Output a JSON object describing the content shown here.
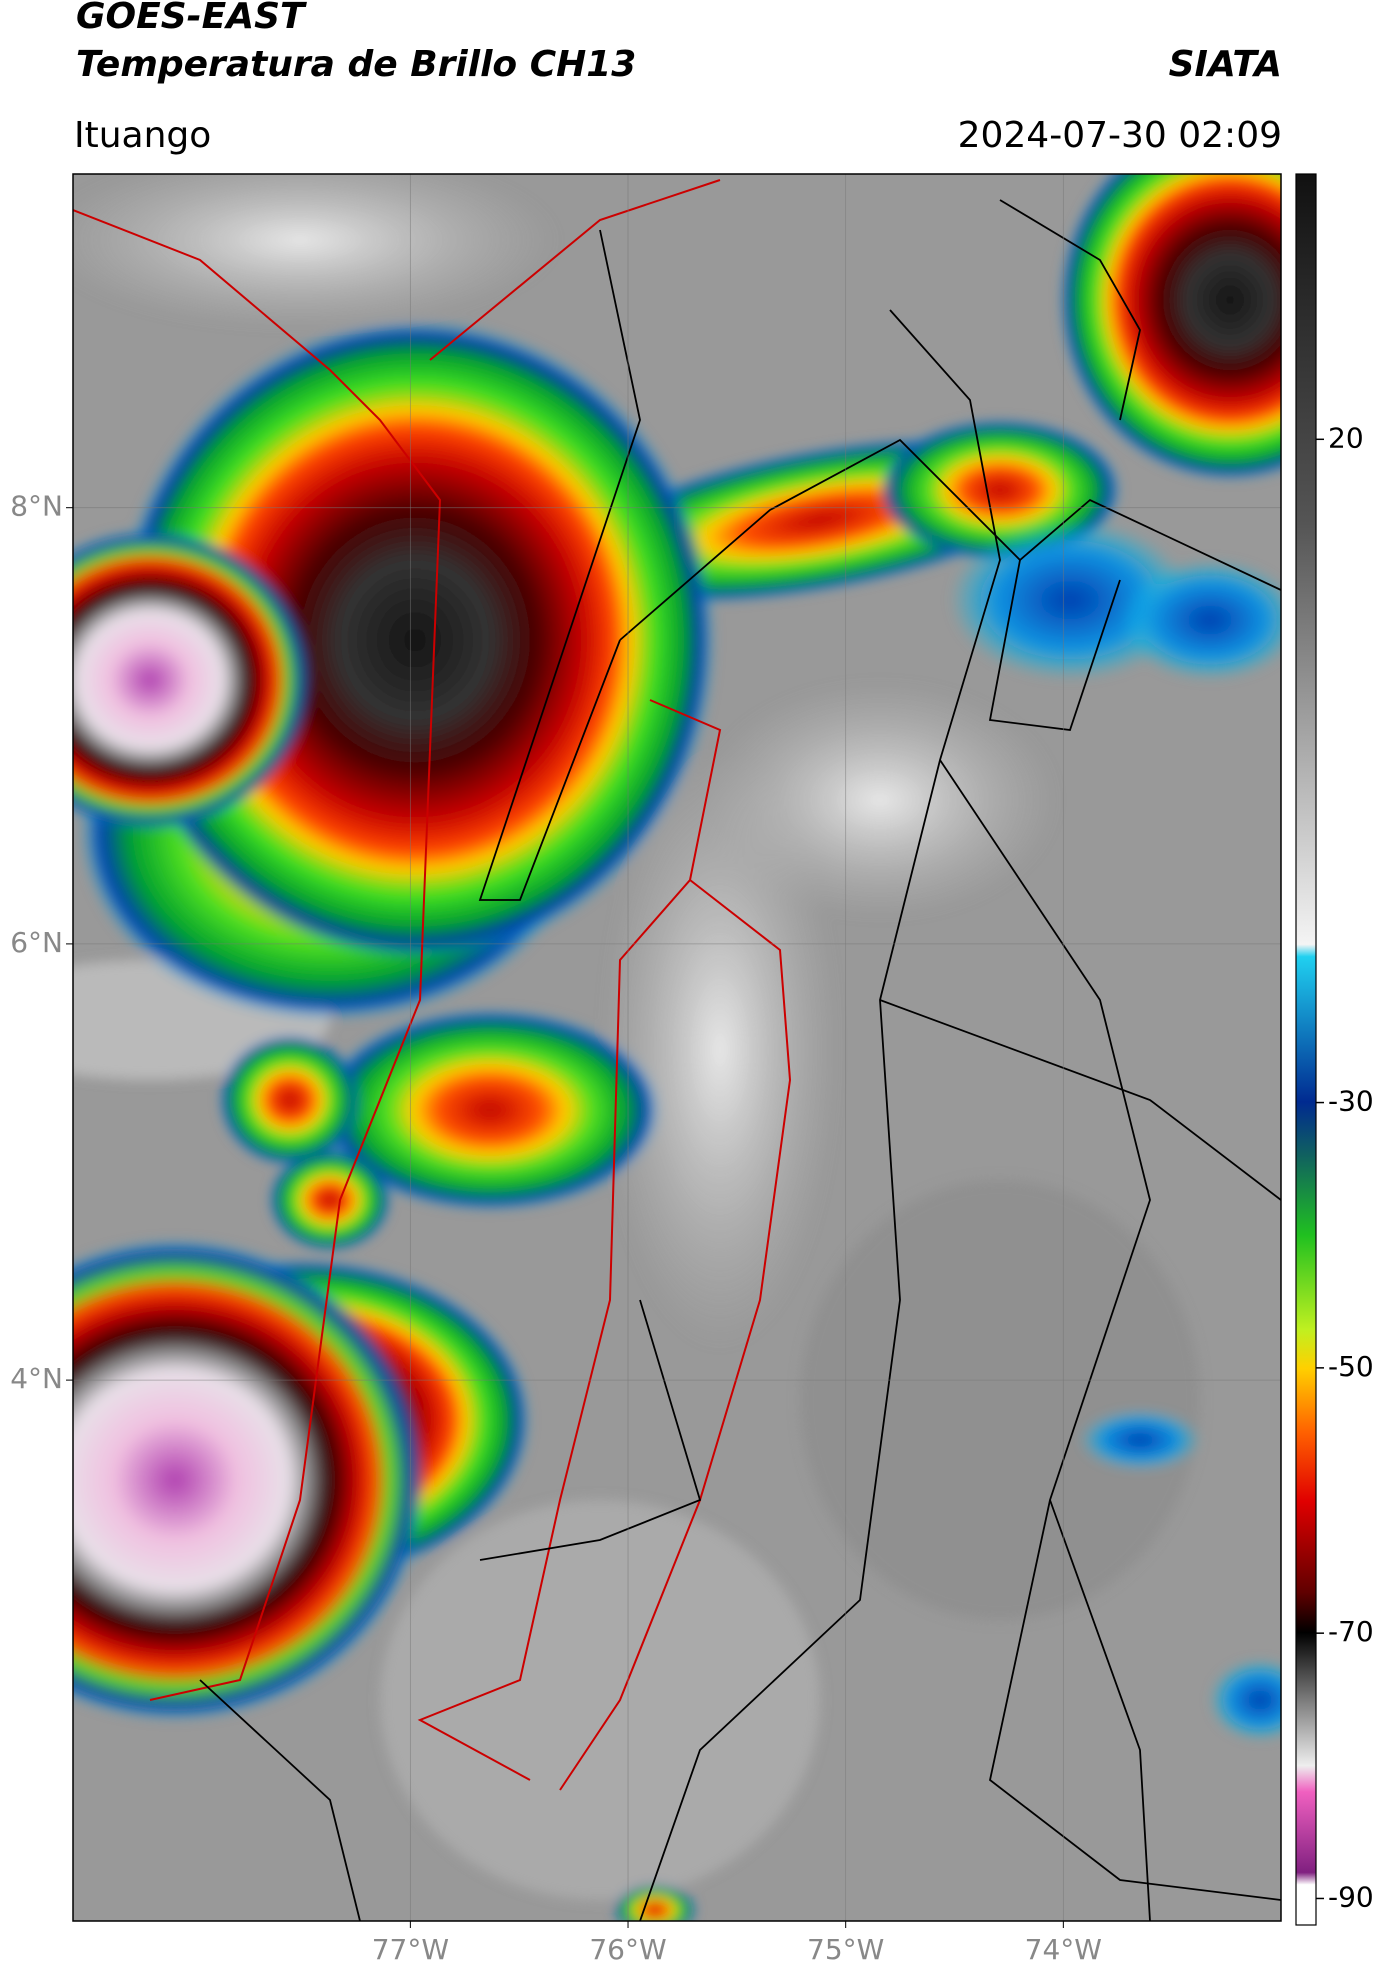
{
  "header": {
    "title": "GOES-EAST",
    "subtitle": "Temperatura de Brillo CH13",
    "brand": "SIATA",
    "location": "Ituango",
    "timestamp": "2024-07-30 02:09"
  },
  "map": {
    "xlim": [
      -78.55,
      -73.0
    ],
    "ylim": [
      1.52,
      9.53
    ],
    "xticks": [
      {
        "value": -77,
        "label": "77°W"
      },
      {
        "value": -76,
        "label": "76°W"
      },
      {
        "value": -75,
        "label": "75°W"
      },
      {
        "value": -74,
        "label": "74°W"
      }
    ],
    "yticks": [
      {
        "value": 8,
        "label": "8°N"
      },
      {
        "value": 6,
        "label": "6°N"
      },
      {
        "value": 4,
        "label": "4°N"
      }
    ]
  },
  "colorbar": {
    "lim": [
      -92,
      40
    ],
    "ticks": [
      20,
      -30,
      -50,
      -70,
      -90
    ]
  }
}
